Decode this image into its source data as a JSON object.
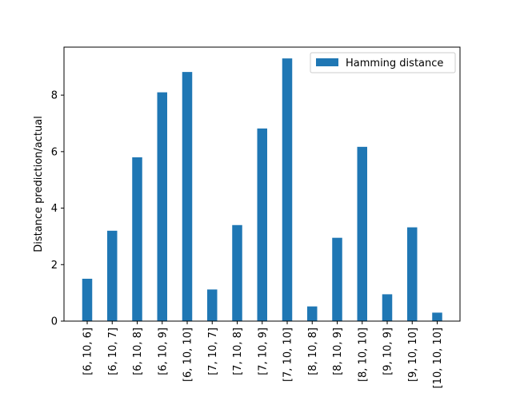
{
  "chart_data": {
    "type": "bar",
    "title": "",
    "xlabel": "",
    "ylabel": "Distance prediction/actual",
    "categories": [
      "[6, 10, 6]",
      "[6, 10, 7]",
      "[6, 10, 8]",
      "[6, 10, 9]",
      "[6, 10, 10]",
      "[7, 10, 7]",
      "[7, 10, 8]",
      "[7, 10, 9]",
      "[7, 10, 10]",
      "[8, 10, 8]",
      "[8, 10, 9]",
      "[8, 10, 10]",
      "[9, 10, 9]",
      "[9, 10, 10]",
      "[10, 10, 10]"
    ],
    "series": [
      {
        "name": "Hamming distance",
        "color": "#1f77b4",
        "values": [
          1.5,
          3.2,
          5.8,
          8.1,
          8.82,
          1.12,
          3.4,
          6.82,
          9.3,
          0.52,
          2.95,
          6.17,
          0.95,
          3.32,
          0.3
        ]
      }
    ],
    "ylim": [
      0,
      9.7
    ],
    "yticks": [
      0,
      2,
      4,
      6,
      8
    ],
    "grid": false,
    "legend": "top-right"
  }
}
